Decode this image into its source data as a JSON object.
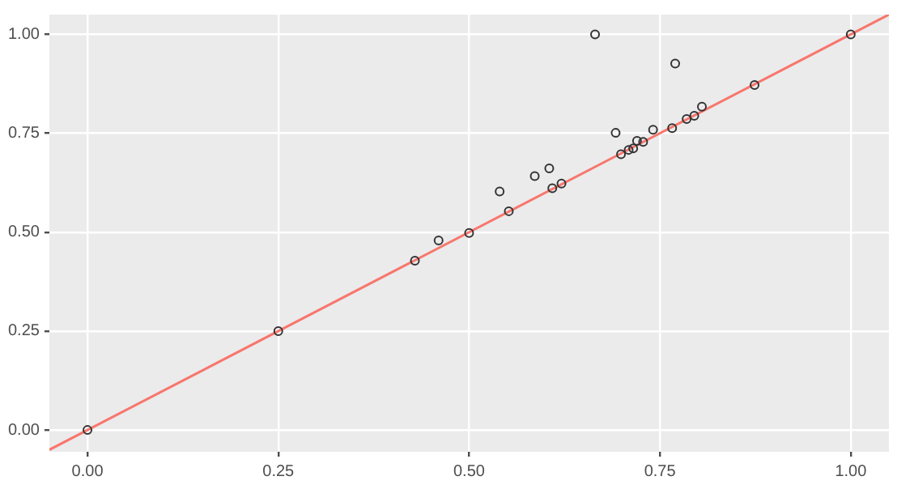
{
  "chart_data": {
    "type": "scatter",
    "grid": true,
    "legend": false,
    "xlim": [
      -0.05,
      1.05
    ],
    "ylim": [
      -0.055,
      1.05
    ],
    "xticks": [
      {
        "value": 0,
        "label": "0.00"
      },
      {
        "value": 0.25,
        "label": "0.25"
      },
      {
        "value": 0.5,
        "label": "0.50"
      },
      {
        "value": 0.75,
        "label": "0.75"
      },
      {
        "value": 1,
        "label": "1.00"
      }
    ],
    "yticks": [
      {
        "value": 0,
        "label": "0.00"
      },
      {
        "value": 0.25,
        "label": "0.25"
      },
      {
        "value": 0.5,
        "label": "0.50"
      },
      {
        "value": 0.75,
        "label": "0.75"
      },
      {
        "value": 1,
        "label": "1.00"
      }
    ],
    "series": [
      {
        "marker": "circle",
        "color": "#333333",
        "x": [
          0,
          0.25,
          0.429,
          0.46,
          0.5,
          0.54,
          0.552,
          0.586,
          0.605,
          0.609,
          0.621,
          0.665,
          0.692,
          0.699,
          0.709,
          0.715,
          0.72,
          0.728,
          0.741,
          0.766,
          0.77,
          0.785,
          0.795,
          0.805,
          0.874,
          1
        ],
        "values": [
          0,
          0.25,
          0.428,
          0.479,
          0.498,
          0.603,
          0.553,
          0.642,
          0.661,
          0.611,
          0.623,
          1,
          0.751,
          0.697,
          0.708,
          0.712,
          0.731,
          0.728,
          0.759,
          0.763,
          0.926,
          0.786,
          0.794,
          0.817,
          0.872,
          1
        ]
      },
      {
        "type": "line",
        "marker": "none",
        "color": "#f8766d",
        "x": [
          -0.05,
          1.05
        ],
        "values": [
          -0.05,
          1.05
        ]
      }
    ]
  }
}
